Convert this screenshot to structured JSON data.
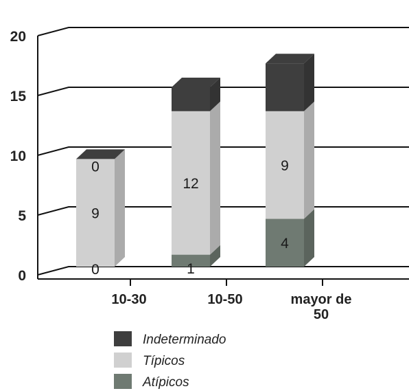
{
  "chart_data": {
    "type": "bar",
    "stacked": true,
    "three_d": true,
    "categories": [
      [
        "10-30"
      ],
      [
        "10-50"
      ],
      [
        "mayor de",
        "50"
      ]
    ],
    "yticks": [
      "0",
      "5",
      "10",
      "15",
      "20"
    ],
    "ylim": [
      0,
      20
    ],
    "grid": true,
    "legend_position": "bottom",
    "series": [
      {
        "name": "Atípicos",
        "values": [
          0,
          1,
          4
        ],
        "color": "#6f7a72",
        "labels": [
          "0",
          "1",
          "4"
        ]
      },
      {
        "name": "Típicos",
        "values": [
          9,
          12,
          9
        ],
        "color": "#d0d0d0",
        "labels": [
          "9",
          "12",
          "9"
        ]
      },
      {
        "name": "Indeterminado",
        "values": [
          0,
          2,
          4
        ],
        "color": "#3e3e3e",
        "labels": [
          "0",
          "",
          ""
        ]
      }
    ],
    "legend_order": [
      2,
      1,
      0
    ]
  }
}
